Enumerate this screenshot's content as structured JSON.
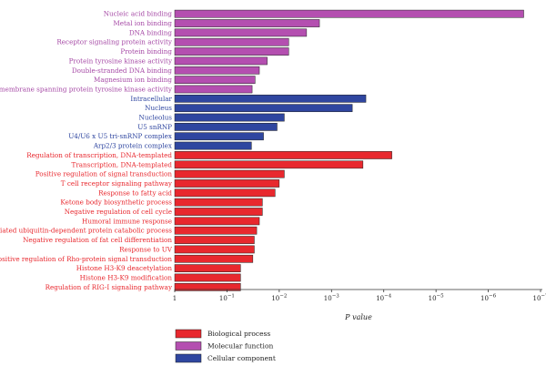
{
  "chart_data": {
    "type": "bar",
    "orientation": "horizontal",
    "xlabel": "P value",
    "x_scale": "log",
    "x_axis_reversed": true,
    "xlim": [
      1,
      1e-07
    ],
    "x_ticks": [
      {
        "value": 1,
        "base": "1",
        "exp": ""
      },
      {
        "value": 0.1,
        "base": "10",
        "exp": "−1"
      },
      {
        "value": 0.01,
        "base": "10",
        "exp": "−2"
      },
      {
        "value": 0.001,
        "base": "10",
        "exp": "−3"
      },
      {
        "value": 0.0001,
        "base": "10",
        "exp": "−4"
      },
      {
        "value": 1e-05,
        "base": "10",
        "exp": "−5"
      },
      {
        "value": 1e-06,
        "base": "10",
        "exp": "−6"
      },
      {
        "value": 1e-07,
        "base": "10",
        "exp": "−7"
      }
    ],
    "colors": {
      "Biological process": "#e8282e",
      "Molecular function": "#b44fb0",
      "Cellular component": "#2f46a0"
    },
    "label_colors": {
      "Biological process": "#e8282e",
      "Molecular function": "#a64aa6",
      "Cellular component": "#2f46a0"
    },
    "legend": [
      "Biological process",
      "Molecular function",
      "Cellular component"
    ],
    "bars": [
      {
        "label": "Nucleic acid binding",
        "group": "Molecular function",
        "p": 2.1e-07
      },
      {
        "label": "Metal ion binding",
        "group": "Molecular function",
        "p": 0.0017
      },
      {
        "label": "DNA binding",
        "group": "Molecular function",
        "p": 0.003
      },
      {
        "label": "Receptor signaling protein activity",
        "group": "Molecular function",
        "p": 0.0066
      },
      {
        "label": "Protein binding",
        "group": "Molecular function",
        "p": 0.0066
      },
      {
        "label": "Protein tyrosine kinase activity",
        "group": "Molecular function",
        "p": 0.017
      },
      {
        "label": "Double-stranded DNA binding",
        "group": "Molecular function",
        "p": 0.024
      },
      {
        "label": "Magnesium ion binding",
        "group": "Molecular function",
        "p": 0.029
      },
      {
        "label": "Non-membrane spanning protein tyrosine kinase activity",
        "group": "Molecular function",
        "p": 0.033
      },
      {
        "label": "Intracellular",
        "group": "Cellular component",
        "p": 0.00022
      },
      {
        "label": "Nucleus",
        "group": "Cellular component",
        "p": 0.0004
      },
      {
        "label": "Nucleolus",
        "group": "Cellular component",
        "p": 0.008
      },
      {
        "label": "U5 snRNP",
        "group": "Cellular component",
        "p": 0.011
      },
      {
        "label": "U4/U6 x U5 tri-snRNP complex",
        "group": "Cellular component",
        "p": 0.02
      },
      {
        "label": "Arp2/3 protein complex",
        "group": "Cellular component",
        "p": 0.034
      },
      {
        "label": "Regulation of transcription, DNA-templated",
        "group": "Biological process",
        "p": 7e-05
      },
      {
        "label": "Transcription, DNA-templated",
        "group": "Biological process",
        "p": 0.00025
      },
      {
        "label": "Positive regulation of signal transduction",
        "group": "Biological process",
        "p": 0.008
      },
      {
        "label": "T cell receptor signaling pathway",
        "group": "Biological process",
        "p": 0.01
      },
      {
        "label": "Response to fatty acid",
        "group": "Biological process",
        "p": 0.012
      },
      {
        "label": "Ketone body biosynthetic process",
        "group": "Biological process",
        "p": 0.021
      },
      {
        "label": "Negative regulation of cell cycle",
        "group": "Biological process",
        "p": 0.021
      },
      {
        "label": "Humoral immune response",
        "group": "Biological process",
        "p": 0.024
      },
      {
        "label": "ER-associated ubiquitin-dependent protein catabolic process",
        "group": "Biological process",
        "p": 0.027
      },
      {
        "label": "Negative regulation of fat cell differentiation",
        "group": "Biological process",
        "p": 0.03
      },
      {
        "label": "Response to UV",
        "group": "Biological process",
        "p": 0.03
      },
      {
        "label": "Positive regulation of Rho-protein signal transduction",
        "group": "Biological process",
        "p": 0.032
      },
      {
        "label": "Histone H3-K9 deacetylation",
        "group": "Biological process",
        "p": 0.055
      },
      {
        "label": "Histone H3-K9 modification",
        "group": "Biological process",
        "p": 0.055
      },
      {
        "label": "Regulation of RIG-I signaling pathway",
        "group": "Biological process",
        "p": 0.055
      }
    ]
  }
}
